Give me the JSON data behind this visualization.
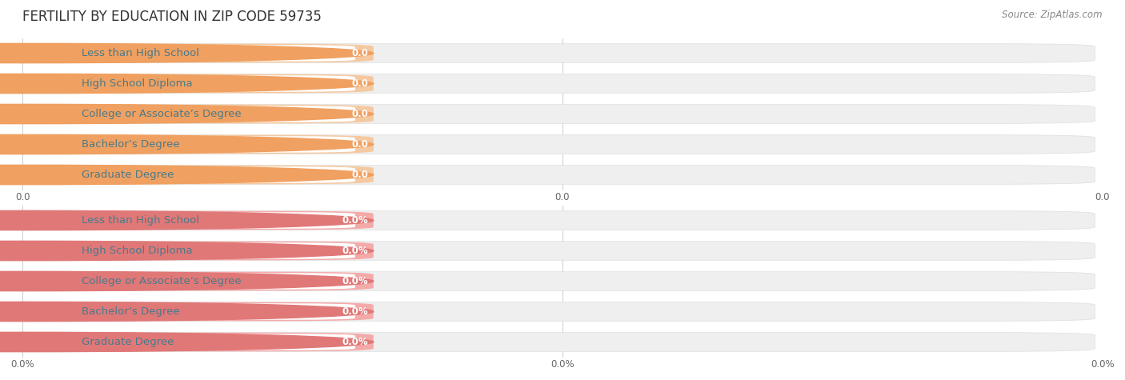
{
  "title": "FERTILITY BY EDUCATION IN ZIP CODE 59735",
  "source": "Source: ZipAtlas.com",
  "categories": [
    "Less than High School",
    "High School Diploma",
    "College or Associate’s Degree",
    "Bachelor’s Degree",
    "Graduate Degree"
  ],
  "group1_values": [
    0.0,
    0.0,
    0.0,
    0.0,
    0.0
  ],
  "group1_bar_color": "#F5C9A0",
  "group1_bg_color": "#EFEFEF",
  "group1_label_color": "#4A7A8A",
  "group1_circle_color": "#F0A060",
  "group1_value_color": "#FFFFFF",
  "group1_value_suffix": "",
  "group2_values": [
    0.0,
    0.0,
    0.0,
    0.0,
    0.0
  ],
  "group2_bar_color": "#F5AAAA",
  "group2_bg_color": "#EFEFEF",
  "group2_label_color": "#4A7A8A",
  "group2_circle_color": "#E07878",
  "group2_value_color": "#FFFFFF",
  "group2_value_suffix": "%",
  "background_color": "#FFFFFF",
  "title_fontsize": 12,
  "label_fontsize": 9.5,
  "value_fontsize": 8.5,
  "tick_fontsize": 8.5,
  "source_fontsize": 8.5
}
